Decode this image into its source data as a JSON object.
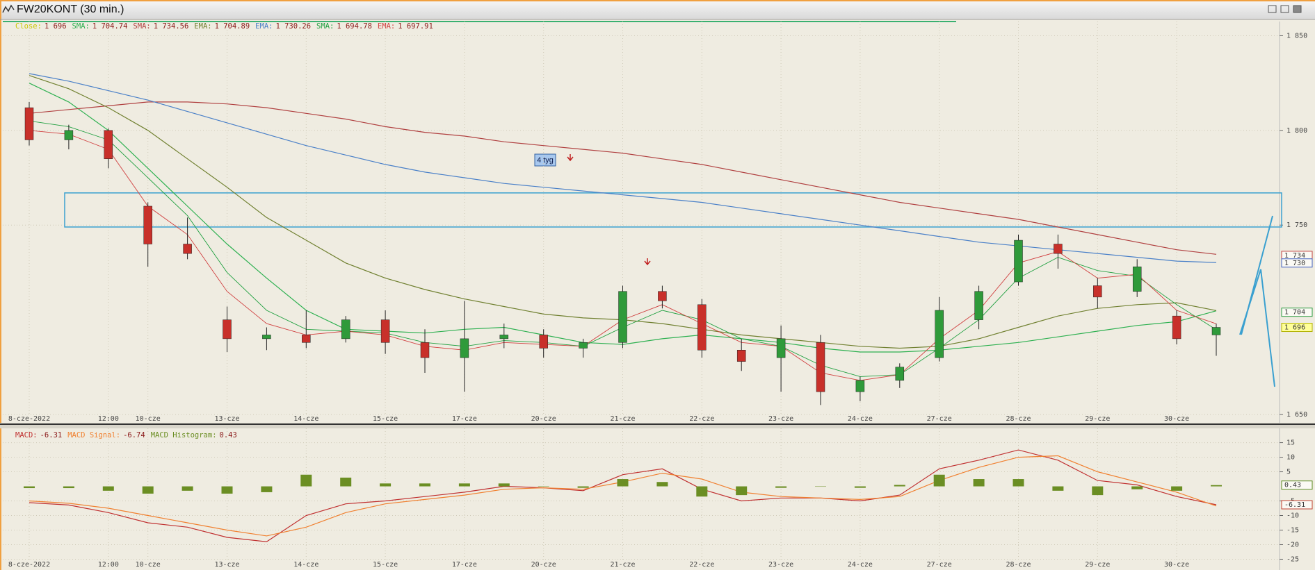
{
  "window": {
    "title": "FW20KONT (30 min.)"
  },
  "chart_data": [
    {
      "type": "candlestick",
      "categories": [
        "8-cze-2022",
        null,
        "12:00",
        "10-cze",
        null,
        "13-cze",
        null,
        "14-cze",
        null,
        "15-cze",
        null,
        "17-cze",
        null,
        "20-cze",
        null,
        "21-cze",
        null,
        "22-cze",
        null,
        "23-cze",
        null,
        "24-cze",
        null,
        "27-cze",
        null,
        "28-cze",
        null,
        "29-cze",
        null,
        "30-cze",
        null
      ],
      "open": [
        1812,
        1795,
        1800,
        1760,
        1740,
        1700,
        1690,
        1692,
        1690,
        1700,
        1688,
        1680,
        1690,
        1692,
        1685,
        1688,
        1715,
        1708,
        1684,
        1680,
        1688,
        1662,
        1668,
        1680,
        1700,
        1720,
        1740,
        1718,
        1715,
        1702,
        1692
      ],
      "high": [
        1815,
        1803,
        1801,
        1762,
        1754,
        1707,
        1696,
        1705,
        1702,
        1705,
        1695,
        1710,
        1698,
        1695,
        1690,
        1718,
        1718,
        1711,
        1690,
        1697,
        1692,
        1670,
        1677,
        1712,
        1718,
        1745,
        1745,
        1722,
        1732,
        1705,
        1698
      ],
      "low": [
        1792,
        1790,
        1780,
        1728,
        1732,
        1683,
        1684,
        1685,
        1688,
        1682,
        1672,
        1662,
        1685,
        1680,
        1680,
        1685,
        1706,
        1680,
        1673,
        1662,
        1655,
        1657,
        1664,
        1678,
        1695,
        1718,
        1727,
        1706,
        1712,
        1687,
        1681
      ],
      "close": [
        1795,
        1800,
        1785,
        1740,
        1735,
        1690,
        1692,
        1688,
        1700,
        1688,
        1680,
        1690,
        1692,
        1685,
        1688,
        1715,
        1710,
        1684,
        1678,
        1690,
        1662,
        1668,
        1675,
        1705,
        1715,
        1742,
        1735,
        1712,
        1728,
        1690,
        1696
      ],
      "close_name": "Close:",
      "close_label": "1 696",
      "close_color": "#c8c800",
      "up_color": "#2f9a3a",
      "down_color": "#c8302a",
      "series": [
        {
          "name": "SMA:",
          "legend_value": "1 704.74",
          "color": "#2db050",
          "width": 1.2,
          "values": [
            1825,
            1815,
            1800,
            1780,
            1760,
            1740,
            1722,
            1705,
            1695,
            1694,
            1693,
            1695,
            1696,
            1692,
            1688,
            1687,
            1690,
            1692,
            1690,
            1688,
            1685,
            1683,
            1683,
            1684,
            1686,
            1688,
            1691,
            1694,
            1697,
            1699,
            1704.74
          ]
        },
        {
          "name": "SMA:",
          "legend_value": "1 734.56",
          "color": "#b04040",
          "width": 1.2,
          "values": [
            1809,
            1811,
            1813,
            1815,
            1815,
            1814,
            1812,
            1809,
            1806,
            1802,
            1799,
            1797,
            1794,
            1792,
            1790,
            1788,
            1785,
            1782,
            1778,
            1774,
            1770,
            1766,
            1762,
            1759,
            1756,
            1753,
            1749,
            1745,
            1741,
            1737,
            1734.56
          ]
        },
        {
          "name": "EMA:",
          "legend_value": "1 704.89",
          "color": "#708030",
          "width": 1.2,
          "values": [
            1829,
            1822,
            1812,
            1800,
            1785,
            1770,
            1754,
            1742,
            1730,
            1722,
            1716,
            1711,
            1707,
            1703,
            1701,
            1700,
            1698,
            1695,
            1692,
            1690,
            1688,
            1686,
            1685,
            1686,
            1690,
            1696,
            1702,
            1706,
            1708,
            1709,
            1704.89
          ]
        },
        {
          "name": "EMA:",
          "legend_value": "1 730.26",
          "color": "#4a80c8",
          "width": 1.2,
          "values": [
            1830,
            1826,
            1821,
            1816,
            1810,
            1804,
            1798,
            1792,
            1787,
            1782,
            1778,
            1775,
            1772,
            1770,
            1768,
            1766,
            1764,
            1762,
            1759,
            1756,
            1753,
            1750,
            1747,
            1744,
            1741,
            1739,
            1737,
            1735,
            1733,
            1731,
            1730.26
          ]
        },
        {
          "name": "SMA:",
          "legend_value": "1 694.78",
          "color": "#20a040",
          "width": 0.9,
          "values": [
            1805,
            1802,
            1795,
            1775,
            1755,
            1725,
            1705,
            1695,
            1694,
            1693,
            1688,
            1686,
            1689,
            1688,
            1686,
            1696,
            1705,
            1700,
            1690,
            1686,
            1676,
            1670,
            1671,
            1685,
            1700,
            1722,
            1733,
            1726,
            1723,
            1708,
            1694.78
          ]
        },
        {
          "name": "EMA:",
          "legend_value": "1 697.91",
          "color": "#d04040",
          "width": 0.9,
          "values": [
            1800,
            1798,
            1790,
            1760,
            1745,
            1715,
            1698,
            1692,
            1694,
            1692,
            1686,
            1684,
            1688,
            1687,
            1686,
            1700,
            1708,
            1698,
            1688,
            1686,
            1672,
            1668,
            1671,
            1690,
            1705,
            1730,
            1736,
            1722,
            1724,
            1705,
            1697.91
          ]
        }
      ],
      "ylim": [
        1645.6,
        1857.5
      ],
      "yticks": [
        {
          "value": 1650,
          "label": "1 650"
        },
        {
          "value": 1750,
          "label": "1 750"
        },
        {
          "value": 1800,
          "label": "1 800"
        },
        {
          "value": 1850,
          "label": "1 850"
        }
      ],
      "grid": true,
      "zone": [
        1749,
        1767
      ],
      "zone_color": "#3aa0d0",
      "annotations": [
        {
          "text": "4 tyg"
        }
      ],
      "tags": [
        {
          "value": 1734,
          "label": "1 734",
          "color": "#c04040"
        },
        {
          "value": 1730,
          "label": "1 730",
          "color": "#4060c0"
        },
        {
          "value": 1704,
          "label": "1 704",
          "color": "#2a9a40"
        },
        {
          "value": 1696,
          "label": "1 696",
          "color": "#b0b000",
          "fill": "#ffff99"
        }
      ]
    },
    {
      "type": "macd",
      "categories": [
        "8-cze-2022",
        null,
        "12:00",
        "10-cze",
        null,
        "13-cze",
        null,
        "14-cze",
        null,
        "15-cze",
        null,
        "17-cze",
        null,
        "20-cze",
        null,
        "21-cze",
        null,
        "22-cze",
        null,
        "23-cze",
        null,
        "24-cze",
        null,
        "27-cze",
        null,
        "28-cze",
        null,
        "29-cze",
        null,
        "30-cze",
        null
      ],
      "series": [
        {
          "name": "MACD:",
          "legend_value": "-6.31",
          "color": "#c03030",
          "mark": "line",
          "values": [
            -5.6,
            -6.4,
            -9,
            -12.5,
            -14,
            -17.5,
            -19,
            -10,
            -6,
            -5,
            -3.5,
            -2,
            0,
            -0.5,
            -1.5,
            4,
            6,
            -1,
            -5,
            -4,
            -4,
            -5,
            -3,
            6,
            9,
            12.5,
            9,
            2,
            0.5,
            -3.5,
            -6.31
          ]
        },
        {
          "name": "MACD Signal:",
          "legend_value": "-6.74",
          "color": "#f08030",
          "mark": "line",
          "values": [
            -5,
            -5.8,
            -7.5,
            -10,
            -12.5,
            -15,
            -17,
            -14,
            -9,
            -6,
            -4.5,
            -3,
            -1,
            -0.5,
            -1,
            1.5,
            4.5,
            2.5,
            -2,
            -3.5,
            -4,
            -4.5,
            -3.5,
            2,
            6.5,
            10,
            10.5,
            5,
            1.5,
            -2,
            -6.74
          ]
        },
        {
          "name": "MACD Histogram:",
          "legend_value": "0.43",
          "color": "#6b8e23",
          "mark": "bar",
          "values": [
            -0.6,
            -0.6,
            -1.5,
            -2.5,
            -1.5,
            -2.5,
            -2,
            4,
            3,
            1,
            1,
            1,
            1,
            0,
            -0.5,
            2.5,
            1.5,
            -3.5,
            -3,
            -0.5,
            0,
            -0.5,
            0.5,
            4,
            2.5,
            2.5,
            -1.5,
            -3,
            -1,
            -1.5,
            0.43
          ]
        }
      ],
      "ylim": [
        -28.7,
        19.9
      ],
      "yticks": [
        15,
        10,
        5,
        -5,
        -10,
        -15,
        -20,
        -25
      ],
      "grid": true,
      "tags": [
        {
          "value": 0.43,
          "color": "#5a8a20"
        },
        {
          "value": -6.31,
          "color": "#c04030"
        }
      ]
    }
  ]
}
